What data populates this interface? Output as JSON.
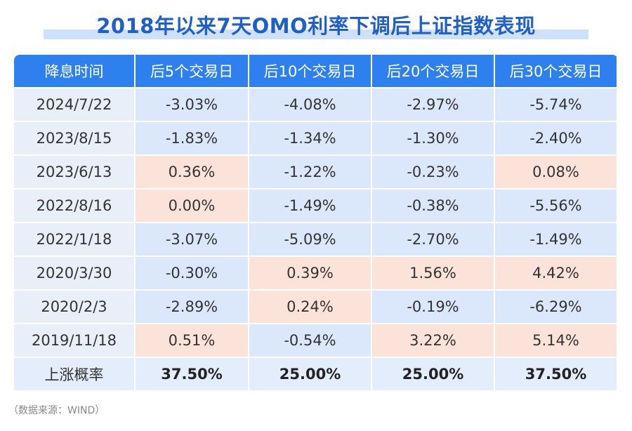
{
  "title": "2018年以来7天OMO利率下调后上证指数表现",
  "table": {
    "header": [
      "降息时间",
      "后5个交易日",
      "后10个交易日",
      "后20个交易日",
      "后30个交易日"
    ],
    "rows": [
      [
        "2024/7/22",
        "-3.03%",
        "-4.08%",
        "-2.97%",
        "-5.74%"
      ],
      [
        "2023/8/15",
        "-1.83%",
        "-1.34%",
        "-1.30%",
        "-2.40%"
      ],
      [
        "2023/6/13",
        "0.36%",
        "-1.22%",
        "-0.23%",
        "0.08%"
      ],
      [
        "2022/8/16",
        "0.00%",
        "-1.49%",
        "-0.38%",
        "-5.56%"
      ],
      [
        "2022/1/18",
        "-3.07%",
        "-5.09%",
        "-2.70%",
        "-1.49%"
      ],
      [
        "2020/3/30",
        "-0.30%",
        "0.39%",
        "1.56%",
        "4.42%"
      ],
      [
        "2020/2/3",
        "-2.89%",
        "0.24%",
        "-0.19%",
        "-6.29%"
      ],
      [
        "2019/11/18",
        "0.51%",
        "-0.54%",
        "3.22%",
        "5.14%"
      ]
    ],
    "footer": [
      "上涨概率",
      "37.50%",
      "25.00%",
      "25.00%",
      "37.50%"
    ]
  },
  "source": "（数据来源：WIND）"
}
